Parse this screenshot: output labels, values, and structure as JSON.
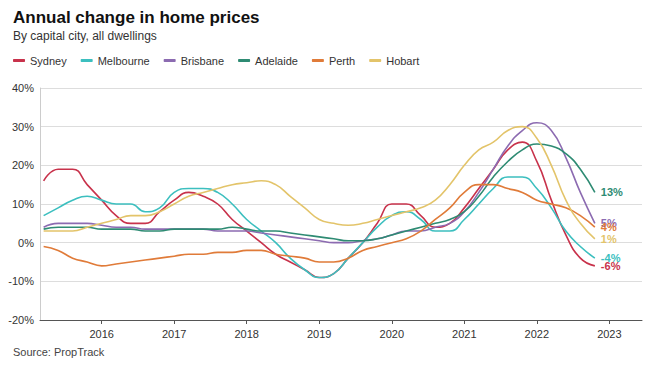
{
  "chart_data": {
    "type": "line",
    "title": "Annual change in home prices",
    "subtitle": "By capital city, all dwellings",
    "source": "Source: PropTrack",
    "x": [
      2015.2,
      2015.4,
      2015.6,
      2015.8,
      2016.0,
      2016.2,
      2016.4,
      2016.6,
      2016.8,
      2017.0,
      2017.2,
      2017.4,
      2017.6,
      2017.8,
      2018.0,
      2018.2,
      2018.4,
      2018.6,
      2018.8,
      2019.0,
      2019.2,
      2019.4,
      2019.6,
      2019.8,
      2020.0,
      2020.2,
      2020.4,
      2020.6,
      2020.8,
      2021.0,
      2021.2,
      2021.4,
      2021.6,
      2021.8,
      2022.0,
      2022.2,
      2022.4,
      2022.6,
      2022.8
    ],
    "xlim": [
      2015.15,
      2023.45
    ],
    "xticks": [
      2016,
      2017,
      2018,
      2019,
      2020,
      2021,
      2022,
      2023
    ],
    "ylim": [
      -20,
      40
    ],
    "yticks": [
      {
        "value": -20,
        "label": "-20%"
      },
      {
        "value": -10,
        "label": "-10%"
      },
      {
        "value": 0,
        "label": "0%"
      },
      {
        "value": 10,
        "label": "10%"
      },
      {
        "value": 20,
        "label": "20%"
      },
      {
        "value": 30,
        "label": "30%"
      },
      {
        "value": 40,
        "label": "40%"
      }
    ],
    "grid": true,
    "legend": "top-left",
    "data_labels": true,
    "series": [
      {
        "name": "Sydney",
        "color": "#c8324b",
        "values": [
          16,
          19,
          19,
          15,
          11,
          7,
          5,
          5,
          8,
          11,
          13,
          12,
          10,
          6,
          3,
          0,
          -3,
          -5,
          -7,
          -9,
          -8,
          -4,
          0,
          5,
          10,
          10,
          7,
          4,
          5,
          9,
          14,
          19,
          24,
          26,
          21,
          11,
          2,
          -4,
          -6
        ],
        "value_labels": [
          null,
          null,
          null,
          null,
          null,
          null,
          null,
          null,
          null,
          null,
          null,
          null,
          null,
          null,
          null,
          null,
          null,
          null,
          null,
          null,
          null,
          null,
          null,
          null,
          null,
          null,
          null,
          null,
          null,
          null,
          null,
          null,
          null,
          null,
          null,
          null,
          null,
          null,
          "-6%"
        ]
      },
      {
        "name": "Melbourne",
        "color": "#3cbfbf",
        "values": [
          7,
          9,
          11,
          12,
          11,
          10,
          10,
          8,
          9,
          13,
          14,
          14,
          13,
          10,
          6,
          3,
          0,
          -4,
          -7,
          -9,
          -8,
          -4,
          0,
          4,
          7,
          8,
          6,
          3,
          3,
          6,
          10,
          14,
          17,
          17,
          14,
          9,
          3,
          -1,
          -4
        ],
        "value_labels": [
          null,
          null,
          null,
          null,
          null,
          null,
          null,
          null,
          null,
          null,
          null,
          null,
          null,
          null,
          null,
          null,
          null,
          null,
          null,
          null,
          null,
          null,
          null,
          null,
          null,
          null,
          null,
          null,
          null,
          null,
          null,
          null,
          null,
          null,
          null,
          null,
          null,
          null,
          "-4%"
        ]
      },
      {
        "name": "Brisbane",
        "color": "#8c6bb1",
        "values": [
          4,
          5,
          5,
          5,
          4.5,
          4,
          4,
          3.5,
          3.5,
          3.5,
          3.5,
          3.5,
          3,
          3,
          3,
          2.5,
          2,
          1.5,
          1,
          0.5,
          0,
          0,
          0.5,
          1,
          2,
          3,
          3,
          4,
          5,
          8,
          13,
          19,
          25,
          29,
          31,
          29,
          22,
          13,
          5
        ],
        "value_labels": [
          null,
          null,
          null,
          null,
          null,
          null,
          null,
          null,
          null,
          null,
          null,
          null,
          null,
          null,
          null,
          null,
          null,
          null,
          null,
          null,
          null,
          null,
          null,
          null,
          null,
          null,
          null,
          null,
          null,
          null,
          null,
          null,
          null,
          null,
          null,
          null,
          null,
          null,
          "5%"
        ]
      },
      {
        "name": "Adelaide",
        "color": "#2e8b73",
        "values": [
          3.5,
          4,
          4,
          4,
          3.5,
          3.5,
          3.5,
          3,
          3,
          3.5,
          3.5,
          3.5,
          3.5,
          4,
          3.5,
          3,
          3,
          2.5,
          2,
          1.5,
          1,
          0.5,
          0.5,
          1,
          2,
          3,
          4,
          5,
          6,
          8,
          12,
          17,
          21,
          24,
          25.5,
          25,
          23,
          19,
          13
        ],
        "value_labels": [
          null,
          null,
          null,
          null,
          null,
          null,
          null,
          null,
          null,
          null,
          null,
          null,
          null,
          null,
          null,
          null,
          null,
          null,
          null,
          null,
          null,
          null,
          null,
          null,
          null,
          null,
          null,
          null,
          null,
          null,
          null,
          null,
          null,
          null,
          null,
          null,
          null,
          null,
          "13%"
        ]
      },
      {
        "name": "Perth",
        "color": "#e07b39",
        "values": [
          -1,
          -2,
          -4,
          -5,
          -6,
          -5.5,
          -5,
          -4.5,
          -4,
          -3.5,
          -3,
          -3,
          -2.5,
          -2.5,
          -2,
          -2,
          -3,
          -3.5,
          -4,
          -5,
          -5,
          -4,
          -2,
          -1,
          0,
          1,
          3,
          6,
          9,
          13,
          15,
          15,
          14,
          13,
          11,
          10,
          9,
          7,
          4
        ],
        "value_labels": [
          null,
          null,
          null,
          null,
          null,
          null,
          null,
          null,
          null,
          null,
          null,
          null,
          null,
          null,
          null,
          null,
          null,
          null,
          null,
          null,
          null,
          null,
          null,
          null,
          null,
          null,
          null,
          null,
          null,
          null,
          null,
          null,
          null,
          null,
          null,
          null,
          null,
          null,
          "4%"
        ]
      },
      {
        "name": "Hobart",
        "color": "#e3c46a",
        "values": [
          3,
          3,
          3,
          4,
          5,
          6,
          7,
          7,
          8,
          10,
          12,
          13,
          14,
          15,
          15.5,
          16,
          15,
          12,
          9,
          6,
          5,
          4.5,
          5,
          6,
          7,
          8,
          9,
          11,
          15,
          20,
          24,
          26,
          29,
          30,
          27,
          20,
          11,
          5,
          1
        ],
        "value_labels": [
          null,
          null,
          null,
          null,
          null,
          null,
          null,
          null,
          null,
          null,
          null,
          null,
          null,
          null,
          null,
          null,
          null,
          null,
          null,
          null,
          null,
          null,
          null,
          null,
          null,
          null,
          null,
          null,
          null,
          null,
          null,
          null,
          null,
          null,
          null,
          null,
          null,
          null,
          "1%"
        ]
      }
    ]
  }
}
